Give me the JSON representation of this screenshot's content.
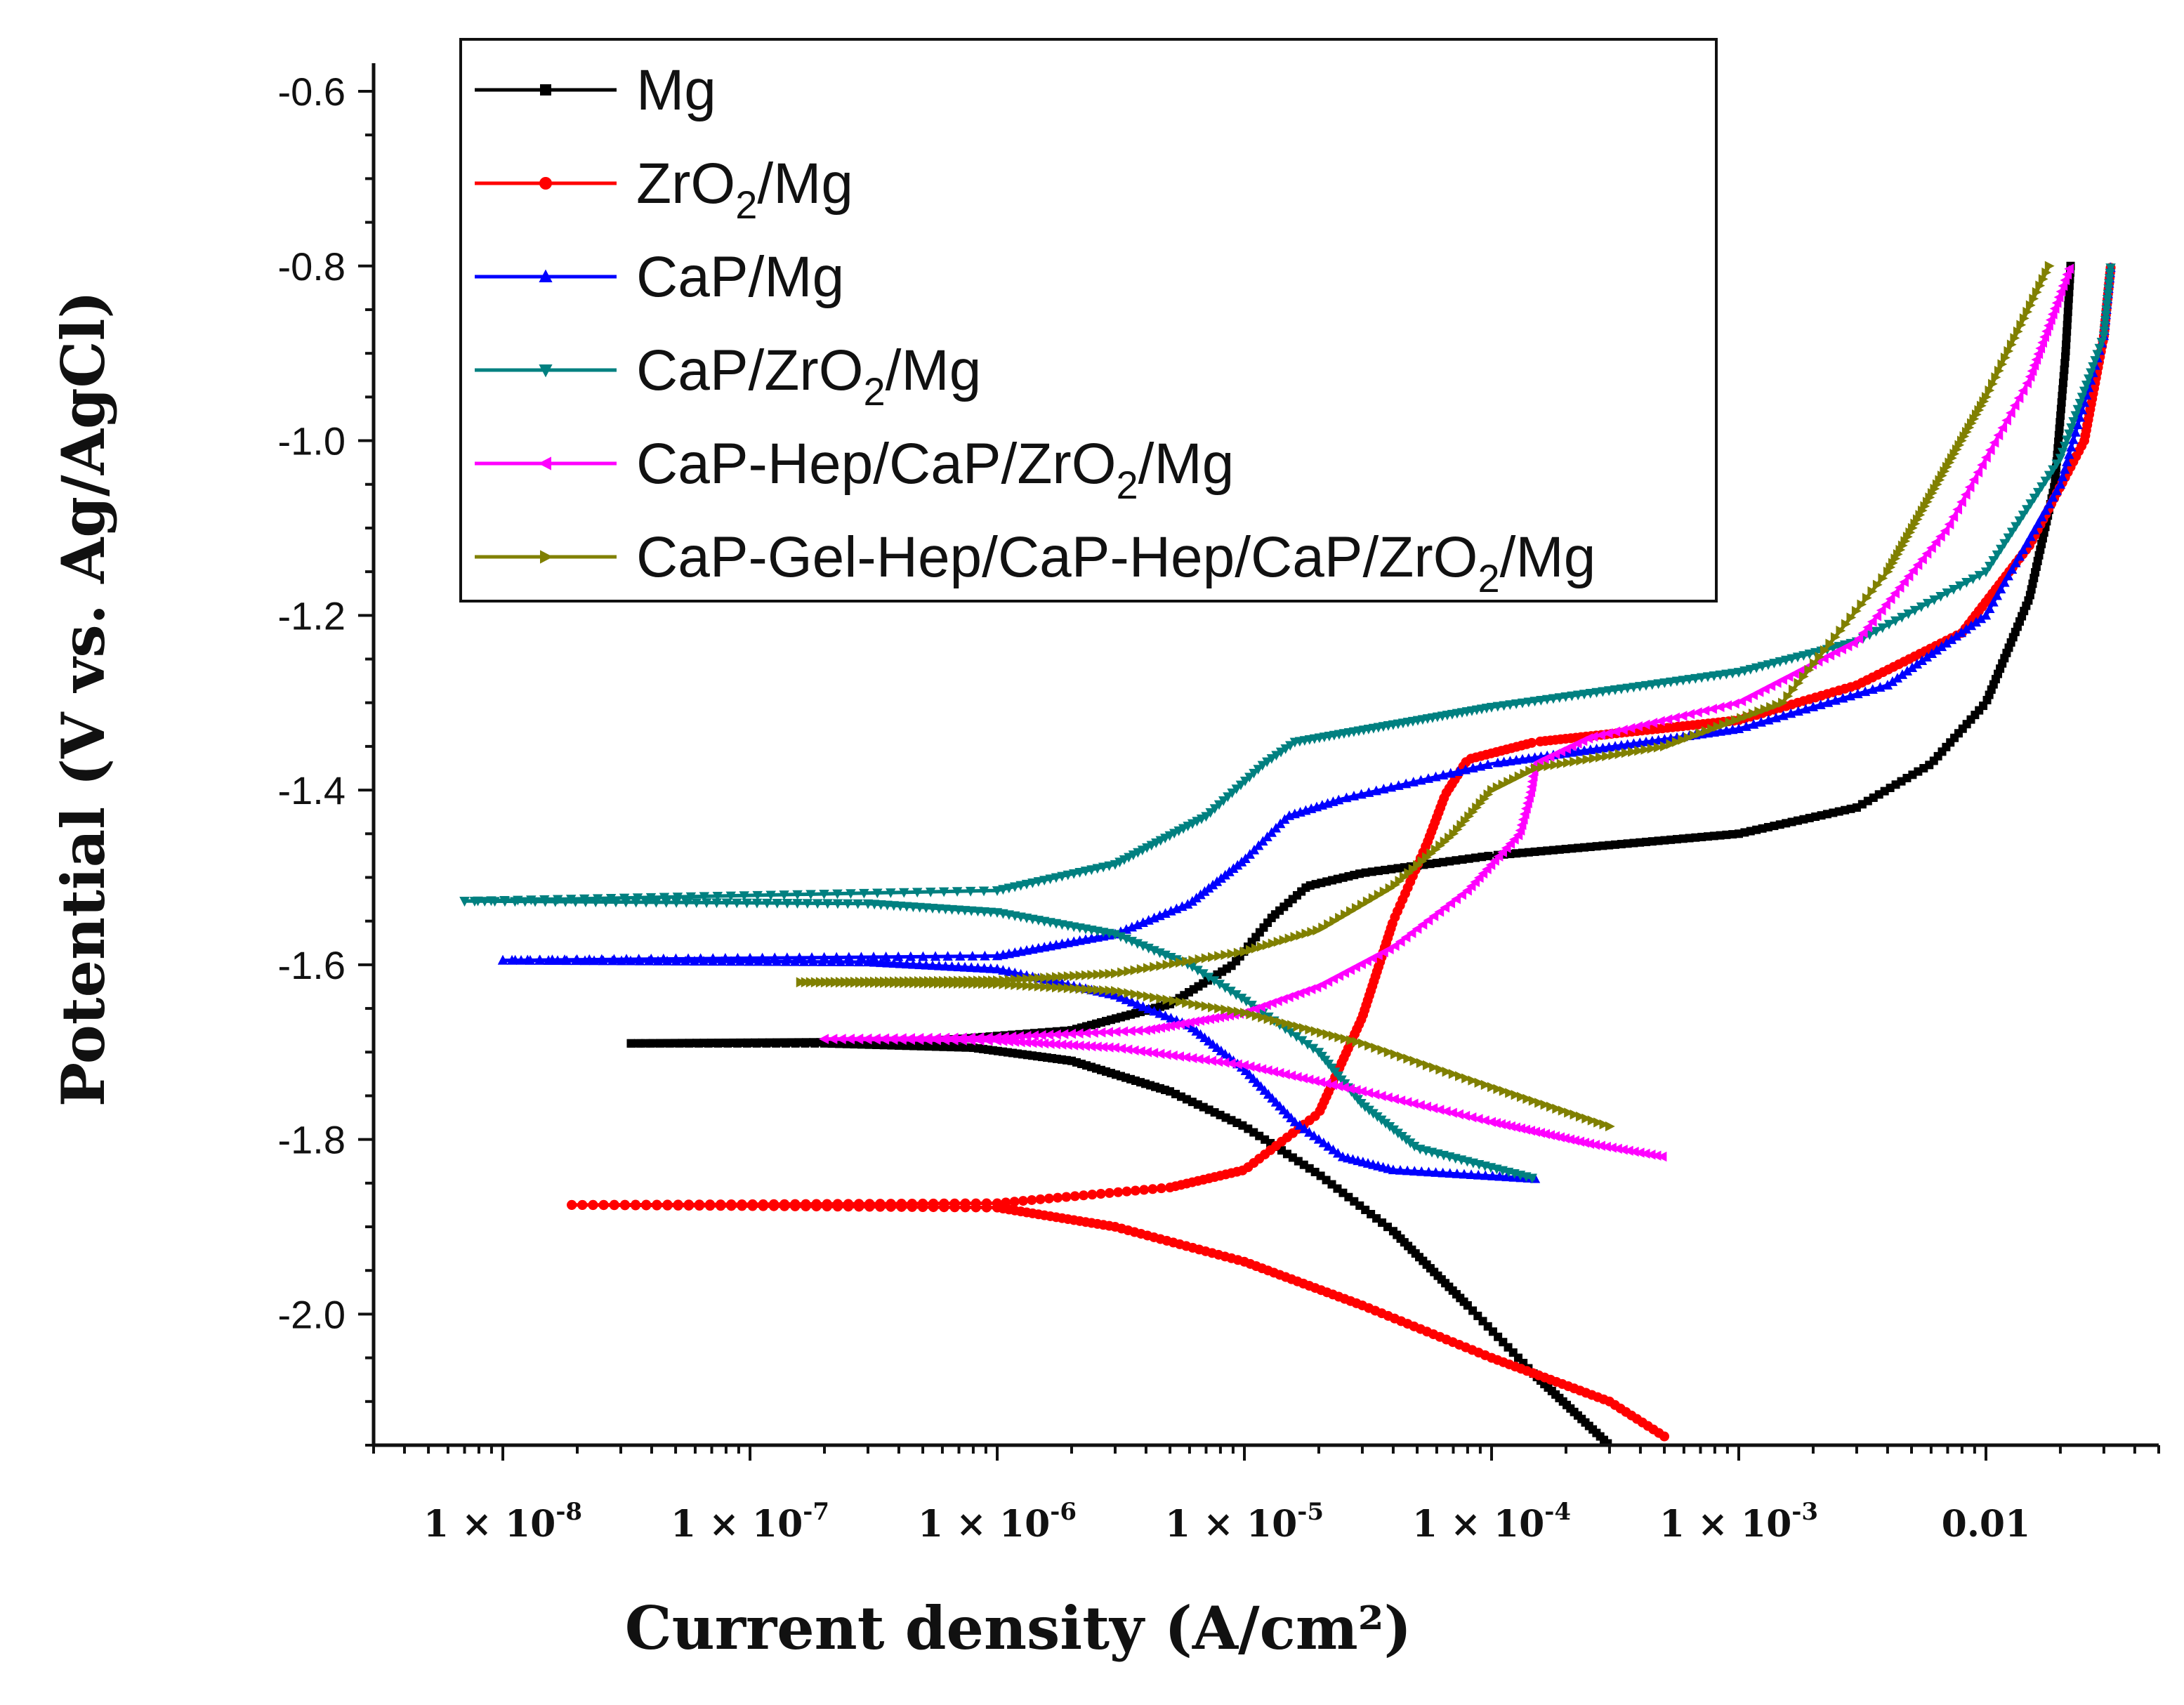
{
  "chart_data": {
    "type": "line",
    "title": "",
    "xlabel": "Current density (A/cm²)",
    "ylabel": "Potential (V vs. Ag/AgCl)",
    "xscale": "log",
    "xlim": [
      3e-09,
      0.05
    ],
    "ylim": [
      -2.15,
      -0.6
    ],
    "yticks": [
      -0.6,
      -0.8,
      -1.0,
      -1.2,
      -1.4,
      -1.6,
      -1.8,
      -2.0
    ],
    "ytick_labels": [
      "-0.6",
      "-0.8",
      "-1.0",
      "-1.2",
      "-1.4",
      "-1.6",
      "-1.8",
      "-2.0"
    ],
    "xticks": [
      1e-08,
      1e-07,
      1e-06,
      1e-05,
      0.0001,
      0.001,
      0.01
    ],
    "xtick_labels": [
      {
        "base": "1 × 10",
        "exp": "-8"
      },
      {
        "base": "1 × 10",
        "exp": "-7"
      },
      {
        "base": "1 × 10",
        "exp": "-6"
      },
      {
        "base": "1 × 10",
        "exp": "-5"
      },
      {
        "base": "1 × 10",
        "exp": "-4"
      },
      {
        "base": "1 × 10",
        "exp": "-3"
      },
      {
        "base": "0.01",
        "exp": ""
      }
    ],
    "legend_position": "top-left",
    "series": [
      {
        "name": "Mg",
        "label_parts": [
          [
            "Mg",
            ""
          ]
        ],
        "color": "#000000",
        "marker": "square",
        "cathodic": [
          [
            3.3e-08,
            -1.69
          ],
          [
            2e-07,
            -1.69
          ],
          [
            8e-07,
            -1.695
          ],
          [
            2e-06,
            -1.71
          ],
          [
            5e-06,
            -1.745
          ],
          [
            1e-05,
            -1.785
          ],
          [
            2e-05,
            -1.84
          ],
          [
            4e-05,
            -1.905
          ],
          [
            8e-05,
            -1.99
          ],
          [
            0.00015,
            -2.07
          ],
          [
            0.0003,
            -2.15
          ]
        ],
        "anodic": [
          [
            3.3e-08,
            -1.69
          ],
          [
            5e-07,
            -1.688
          ],
          [
            2e-06,
            -1.675
          ],
          [
            5e-06,
            -1.645
          ],
          [
            9e-06,
            -1.6
          ],
          [
            1.3e-05,
            -1.545
          ],
          [
            1.8e-05,
            -1.51
          ],
          [
            3e-05,
            -1.495
          ],
          [
            0.0001,
            -1.475
          ],
          [
            0.001,
            -1.45
          ],
          [
            0.003,
            -1.42
          ],
          [
            0.006,
            -1.37
          ],
          [
            0.01,
            -1.3
          ],
          [
            0.015,
            -1.18
          ],
          [
            0.019,
            -1.05
          ],
          [
            0.021,
            -0.9
          ],
          [
            0.022,
            -0.8
          ]
        ]
      },
      {
        "name": "ZrO2/Mg",
        "label_parts": [
          [
            "ZrO",
            ""
          ],
          [
            "2",
            "sub"
          ],
          [
            "/Mg",
            ""
          ]
        ],
        "color": "#ff0000",
        "marker": "circle",
        "cathodic": [
          [
            1.9e-08,
            -1.875
          ],
          [
            1e-06,
            -1.878
          ],
          [
            3e-06,
            -1.9
          ],
          [
            1e-05,
            -1.94
          ],
          [
            3e-05,
            -1.99
          ],
          [
            0.0001,
            -2.05
          ],
          [
            0.0003,
            -2.1
          ],
          [
            0.0005,
            -2.14
          ]
        ],
        "anodic": [
          [
            1.9e-08,
            -1.875
          ],
          [
            1e-06,
            -1.873
          ],
          [
            5e-06,
            -1.855
          ],
          [
            1e-05,
            -1.835
          ],
          [
            2e-05,
            -1.77
          ],
          [
            3e-05,
            -1.66
          ],
          [
            4e-05,
            -1.55
          ],
          [
            5.5e-05,
            -1.46
          ],
          [
            6.5e-05,
            -1.405
          ],
          [
            8e-05,
            -1.365
          ],
          [
            0.00015,
            -1.345
          ],
          [
            0.001,
            -1.32
          ],
          [
            0.003,
            -1.28
          ],
          [
            0.008,
            -1.22
          ],
          [
            0.015,
            -1.12
          ],
          [
            0.025,
            -1.0
          ],
          [
            0.03,
            -0.88
          ],
          [
            0.032,
            -0.8
          ]
        ]
      },
      {
        "name": "CaP/Mg",
        "label_parts": [
          [
            "CaP/Mg",
            ""
          ]
        ],
        "color": "#0000ff",
        "marker": "triangle-up",
        "cathodic": [
          [
            1e-08,
            -1.595
          ],
          [
            3e-07,
            -1.597
          ],
          [
            1e-06,
            -1.605
          ],
          [
            3e-06,
            -1.635
          ],
          [
            6e-06,
            -1.67
          ],
          [
            1e-05,
            -1.72
          ],
          [
            1.6e-05,
            -1.78
          ],
          [
            2.5e-05,
            -1.82
          ],
          [
            4e-05,
            -1.835
          ],
          [
            0.00015,
            -1.845
          ]
        ],
        "anodic": [
          [
            1e-08,
            -1.595
          ],
          [
            1e-06,
            -1.59
          ],
          [
            3e-06,
            -1.565
          ],
          [
            6e-06,
            -1.53
          ],
          [
            1e-05,
            -1.48
          ],
          [
            1.5e-05,
            -1.43
          ],
          [
            2.5e-05,
            -1.41
          ],
          [
            0.0001,
            -1.37
          ],
          [
            0.001,
            -1.33
          ],
          [
            0.004,
            -1.28
          ],
          [
            0.01,
            -1.2
          ],
          [
            0.02,
            -1.05
          ],
          [
            0.03,
            -0.88
          ],
          [
            0.032,
            -0.8
          ]
        ]
      },
      {
        "name": "CaP/ZrO2/Mg",
        "label_parts": [
          [
            "CaP/ZrO",
            ""
          ],
          [
            "2",
            "sub"
          ],
          [
            "/Mg",
            ""
          ]
        ],
        "color": "#008080",
        "marker": "triangle-down",
        "cathodic": [
          [
            7e-09,
            -1.527
          ],
          [
            3e-07,
            -1.53
          ],
          [
            1e-06,
            -1.54
          ],
          [
            3e-06,
            -1.565
          ],
          [
            6e-06,
            -1.6
          ],
          [
            1e-05,
            -1.64
          ],
          [
            2e-05,
            -1.7
          ],
          [
            3e-05,
            -1.76
          ],
          [
            5e-05,
            -1.81
          ],
          [
            0.00015,
            -1.845
          ]
        ],
        "anodic": [
          [
            7e-09,
            -1.527
          ],
          [
            1e-06,
            -1.515
          ],
          [
            3e-06,
            -1.485
          ],
          [
            7e-06,
            -1.43
          ],
          [
            1.2e-05,
            -1.37
          ],
          [
            1.6e-05,
            -1.345
          ],
          [
            0.0001,
            -1.305
          ],
          [
            0.001,
            -1.265
          ],
          [
            0.003,
            -1.23
          ],
          [
            0.01,
            -1.15
          ],
          [
            0.02,
            -1.02
          ],
          [
            0.03,
            -0.88
          ],
          [
            0.032,
            -0.8
          ]
        ]
      },
      {
        "name": "CaP-Hep/CaP/ZrO2/Mg",
        "label_parts": [
          [
            "CaP-Hep/CaP/ZrO",
            ""
          ],
          [
            "2",
            "sub"
          ],
          [
            "/Mg",
            ""
          ]
        ],
        "color": "#ff00ff",
        "marker": "triangle-left",
        "cathodic": [
          [
            2e-07,
            -1.685
          ],
          [
            1e-06,
            -1.687
          ],
          [
            3e-06,
            -1.695
          ],
          [
            1e-05,
            -1.715
          ],
          [
            3e-05,
            -1.745
          ],
          [
            0.0001,
            -1.78
          ],
          [
            0.00025,
            -1.805
          ],
          [
            0.0005,
            -1.82
          ]
        ],
        "anodic": [
          [
            2e-07,
            -1.685
          ],
          [
            1e-06,
            -1.683
          ],
          [
            4e-06,
            -1.675
          ],
          [
            1e-05,
            -1.655
          ],
          [
            2e-05,
            -1.625
          ],
          [
            4e-05,
            -1.58
          ],
          [
            8e-05,
            -1.515
          ],
          [
            0.00013,
            -1.45
          ],
          [
            0.000145,
            -1.4
          ],
          [
            0.00015,
            -1.37
          ],
          [
            0.00025,
            -1.34
          ],
          [
            0.001,
            -1.3
          ],
          [
            0.003,
            -1.23
          ],
          [
            0.007,
            -1.1
          ],
          [
            0.015,
            -0.93
          ],
          [
            0.022,
            -0.8
          ]
        ]
      },
      {
        "name": "CaP-Gel-Hep/CaP-Hep/CaP/ZrO2/Mg",
        "label_parts": [
          [
            "CaP-Gel-Hep/CaP-Hep/CaP/ZrO",
            ""
          ],
          [
            "2",
            "sub"
          ],
          [
            "/Mg",
            ""
          ]
        ],
        "color": "#808000",
        "marker": "triangle-right",
        "cathodic": [
          [
            1.6e-07,
            -1.62
          ],
          [
            1e-06,
            -1.622
          ],
          [
            3e-06,
            -1.63
          ],
          [
            1e-05,
            -1.655
          ],
          [
            3e-05,
            -1.69
          ],
          [
            0.0001,
            -1.74
          ],
          [
            0.0003,
            -1.785
          ]
        ],
        "anodic": [
          [
            1.6e-07,
            -1.62
          ],
          [
            1e-06,
            -1.618
          ],
          [
            3e-06,
            -1.61
          ],
          [
            1e-05,
            -1.585
          ],
          [
            2e-05,
            -1.56
          ],
          [
            4e-05,
            -1.51
          ],
          [
            7e-05,
            -1.45
          ],
          [
            0.0001,
            -1.4
          ],
          [
            0.00015,
            -1.375
          ],
          [
            0.0005,
            -1.35
          ],
          [
            0.0015,
            -1.3
          ],
          [
            0.004,
            -1.15
          ],
          [
            0.01,
            -0.95
          ],
          [
            0.018,
            -0.8
          ]
        ]
      }
    ]
  }
}
